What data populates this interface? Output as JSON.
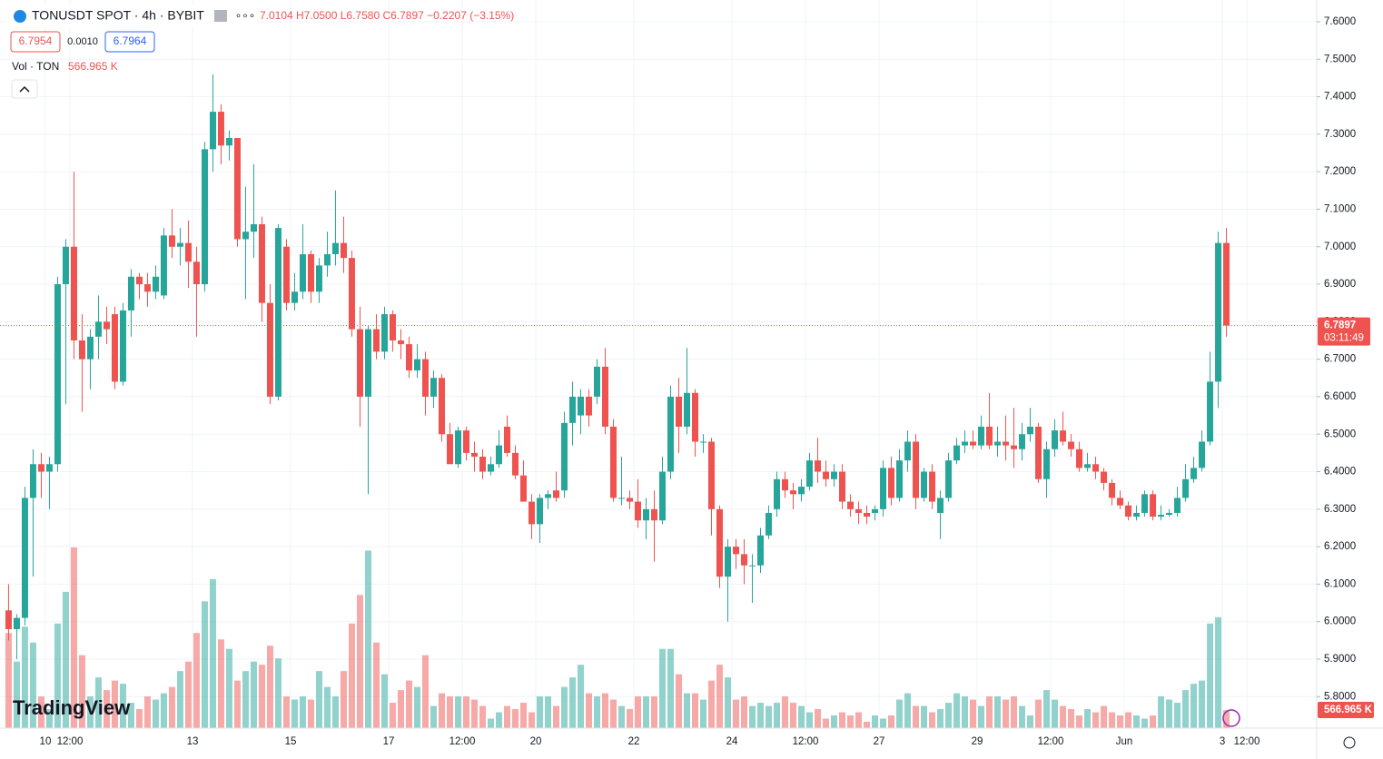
{
  "header": {
    "symbol": "TONUSDT SPOT · 4h · BYBIT",
    "ohlc": "7.0104 H7.0500 L6.7580 C6.7897 −0.2207 (−3.15%)",
    "bid": "6.7954",
    "spread": "0.0010",
    "ask": "6.7964",
    "vol_name": "Vol · TON",
    "vol_value": "566.965 K",
    "countdown": "03:11:49",
    "watermark": "TradingView"
  },
  "chart_data": {
    "type": "candlestick",
    "up_color": "#26a69a",
    "down_color": "#ef5350",
    "grid": true,
    "open": [
      6.03,
      5.98,
      6.01,
      6.33,
      6.42,
      6.4,
      6.42,
      6.9,
      7.0,
      6.75,
      6.7,
      6.76,
      6.8,
      6.82,
      6.64,
      6.83,
      6.92,
      6.9,
      6.88,
      6.87,
      7.03,
      7.0,
      7.01,
      6.96,
      6.9,
      7.26,
      7.36,
      7.27,
      7.29,
      7.02,
      7.04,
      7.06,
      6.85,
      6.6,
      7.0,
      6.85,
      6.88,
      6.98,
      6.88,
      6.95,
      6.98,
      7.01,
      6.97,
      6.78,
      6.6,
      6.78,
      6.72,
      6.82,
      6.75,
      6.74,
      6.67,
      6.7,
      6.6,
      6.65,
      6.5,
      6.42,
      6.51,
      6.45,
      6.44,
      6.4,
      6.42,
      6.52,
      6.45,
      6.39,
      6.32,
      6.26,
      6.33,
      6.35,
      6.35,
      6.53,
      6.55,
      6.6,
      6.6,
      6.68,
      6.52,
      6.33,
      6.33,
      6.32,
      6.27,
      6.3,
      6.27,
      6.4,
      6.6,
      6.52,
      6.61,
      6.48,
      6.48,
      6.3,
      6.12,
      6.2,
      6.18,
      6.15,
      6.15,
      6.23,
      6.3,
      6.38,
      6.35,
      6.34,
      6.36,
      6.43,
      6.4,
      6.38,
      6.4,
      6.32,
      6.3,
      6.29,
      6.29,
      6.3,
      6.41,
      6.33,
      6.43,
      6.48,
      6.33,
      6.4,
      6.29,
      6.33,
      6.43,
      6.47,
      6.48,
      6.47,
      6.52,
      6.47,
      6.48,
      6.47,
      6.46,
      6.5,
      6.52,
      6.38,
      6.46,
      6.51,
      6.48,
      6.46,
      6.41,
      6.42,
      6.4,
      6.37,
      6.33,
      6.31,
      6.28,
      6.29,
      6.34,
      6.28,
      6.285,
      6.29,
      6.33,
      6.38,
      6.41,
      6.48,
      6.64,
      7.01
    ],
    "high": [
      6.1,
      6.02,
      6.36,
      6.46,
      6.45,
      6.44,
      6.92,
      7.02,
      7.2,
      6.82,
      6.78,
      6.87,
      6.84,
      6.84,
      6.85,
      6.94,
      6.93,
      6.93,
      6.95,
      7.05,
      7.1,
      7.05,
      7.07,
      7.0,
      7.28,
      7.46,
      7.38,
      7.31,
      7.29,
      7.16,
      7.22,
      7.08,
      6.9,
      7.06,
      7.02,
      6.93,
      7.06,
      6.99,
      6.97,
      7.04,
      7.15,
      7.08,
      6.99,
      6.84,
      6.79,
      6.82,
      6.84,
      6.83,
      6.78,
      6.76,
      6.74,
      6.72,
      6.67,
      6.66,
      6.53,
      6.52,
      6.52,
      6.48,
      6.46,
      6.44,
      6.51,
      6.55,
      6.47,
      6.43,
      6.34,
      6.34,
      6.35,
      6.4,
      6.56,
      6.64,
      6.62,
      6.62,
      6.7,
      6.73,
      6.54,
      6.44,
      6.35,
      6.38,
      6.33,
      6.35,
      6.44,
      6.63,
      6.65,
      6.73,
      6.62,
      6.5,
      6.49,
      6.31,
      6.22,
      6.22,
      6.22,
      6.18,
      6.25,
      6.31,
      6.4,
      6.4,
      6.37,
      6.38,
      6.45,
      6.49,
      6.43,
      6.42,
      6.42,
      6.34,
      6.32,
      6.31,
      6.31,
      6.43,
      6.44,
      6.46,
      6.51,
      6.5,
      6.41,
      6.42,
      6.35,
      6.45,
      6.49,
      6.51,
      6.51,
      6.55,
      6.61,
      6.52,
      6.55,
      6.57,
      6.53,
      6.57,
      6.53,
      6.48,
      6.54,
      6.56,
      6.5,
      6.48,
      6.45,
      6.44,
      6.41,
      6.38,
      6.35,
      6.32,
      6.31,
      6.35,
      6.35,
      6.31,
      6.3,
      6.36,
      6.42,
      6.44,
      6.51,
      6.72,
      7.04,
      7.05
    ],
    "low": [
      5.95,
      5.9,
      5.99,
      6.12,
      6.33,
      6.3,
      6.4,
      6.58,
      6.7,
      6.56,
      6.62,
      6.7,
      6.74,
      6.62,
      6.63,
      6.76,
      6.86,
      6.84,
      6.86,
      6.86,
      6.97,
      6.95,
      6.89,
      6.76,
      6.88,
      7.2,
      7.22,
      7.23,
      7.0,
      6.86,
      6.97,
      6.8,
      6.58,
      6.59,
      6.83,
      6.83,
      6.86,
      6.85,
      6.85,
      6.92,
      6.95,
      6.93,
      6.76,
      6.52,
      6.34,
      6.7,
      6.7,
      6.72,
      6.7,
      6.65,
      6.65,
      6.55,
      6.57,
      6.48,
      6.42,
      6.41,
      6.43,
      6.4,
      6.38,
      6.39,
      6.41,
      6.44,
      6.38,
      6.32,
      6.22,
      6.21,
      6.3,
      6.32,
      6.33,
      6.47,
      6.5,
      6.52,
      6.58,
      6.5,
      6.32,
      6.31,
      6.3,
      6.25,
      6.22,
      6.16,
      6.26,
      6.38,
      6.45,
      6.5,
      6.44,
      6.45,
      6.23,
      6.09,
      6.0,
      6.14,
      6.1,
      6.05,
      6.13,
      6.22,
      6.28,
      6.33,
      6.3,
      6.32,
      6.35,
      6.37,
      6.36,
      6.36,
      6.3,
      6.28,
      6.26,
      6.26,
      6.27,
      6.28,
      6.31,
      6.32,
      6.4,
      6.3,
      6.32,
      6.3,
      6.22,
      6.32,
      6.42,
      6.45,
      6.46,
      6.46,
      6.46,
      6.44,
      6.43,
      6.41,
      6.43,
      6.48,
      6.37,
      6.33,
      6.44,
      6.47,
      6.44,
      6.4,
      6.4,
      6.38,
      6.35,
      6.31,
      6.3,
      6.27,
      6.27,
      6.28,
      6.27,
      6.27,
      6.28,
      6.28,
      6.32,
      6.37,
      6.4,
      6.47,
      6.57,
      6.76
    ],
    "close": [
      5.98,
      6.01,
      6.33,
      6.42,
      6.4,
      6.42,
      6.9,
      7.0,
      6.75,
      6.7,
      6.76,
      6.8,
      6.78,
      6.64,
      6.83,
      6.92,
      6.9,
      6.88,
      6.92,
      7.03,
      7.0,
      7.01,
      6.96,
      6.9,
      7.26,
      7.36,
      7.27,
      7.29,
      7.02,
      7.04,
      7.06,
      6.85,
      6.6,
      7.05,
      6.85,
      6.88,
      6.98,
      6.88,
      6.95,
      6.98,
      7.01,
      6.97,
      6.78,
      6.6,
      6.78,
      6.72,
      6.82,
      6.75,
      6.74,
      6.67,
      6.7,
      6.6,
      6.65,
      6.5,
      6.42,
      6.51,
      6.45,
      6.44,
      6.4,
      6.42,
      6.47,
      6.45,
      6.39,
      6.32,
      6.26,
      6.33,
      6.34,
      6.33,
      6.53,
      6.6,
      6.6,
      6.55,
      6.68,
      6.52,
      6.33,
      6.33,
      6.32,
      6.27,
      6.3,
      6.27,
      6.4,
      6.6,
      6.52,
      6.61,
      6.48,
      6.48,
      6.3,
      6.12,
      6.2,
      6.18,
      6.15,
      6.15,
      6.23,
      6.29,
      6.38,
      6.35,
      6.34,
      6.36,
      6.43,
      6.4,
      6.38,
      6.4,
      6.32,
      6.3,
      6.29,
      6.28,
      6.3,
      6.41,
      6.33,
      6.43,
      6.48,
      6.33,
      6.4,
      6.32,
      6.33,
      6.43,
      6.47,
      6.48,
      6.47,
      6.52,
      6.47,
      6.48,
      6.47,
      6.46,
      6.5,
      6.52,
      6.38,
      6.46,
      6.51,
      6.48,
      6.46,
      6.41,
      6.42,
      6.4,
      6.37,
      6.33,
      6.31,
      6.28,
      6.29,
      6.34,
      6.28,
      6.285,
      6.29,
      6.33,
      6.38,
      6.41,
      6.48,
      6.64,
      7.01,
      6.7897
    ],
    "volume": [
      3000,
      2100,
      3200,
      2700,
      1000,
      600,
      3300,
      4300,
      5700,
      2300,
      1000,
      1600,
      1200,
      1500,
      1400,
      800,
      600,
      1000,
      900,
      1100,
      1300,
      1800,
      2100,
      3000,
      4000,
      4700,
      2800,
      2500,
      1500,
      1800,
      2100,
      2000,
      2600,
      2200,
      1000,
      900,
      1000,
      900,
      1800,
      1300,
      1000,
      1800,
      3300,
      4200,
      5600,
      2700,
      1700,
      800,
      1200,
      1500,
      1300,
      2300,
      700,
      1100,
      1000,
      1000,
      1000,
      900,
      700,
      300,
      500,
      700,
      600,
      800,
      500,
      1000,
      1000,
      700,
      1300,
      1600,
      2000,
      1100,
      1000,
      1100,
      900,
      700,
      600,
      1000,
      1000,
      1000,
      2500,
      2500,
      1700,
      1100,
      1100,
      900,
      1500,
      2000,
      1600,
      900,
      1000,
      700,
      800,
      700,
      800,
      1000,
      800,
      700,
      500,
      600,
      300,
      400,
      500,
      400,
      500,
      200,
      400,
      300,
      400,
      900,
      1100,
      700,
      700,
      500,
      600,
      800,
      1100,
      1000,
      900,
      700,
      1000,
      1000,
      900,
      1000,
      700,
      400,
      900,
      1200,
      900,
      700,
      600,
      400,
      600,
      500,
      700,
      500,
      400,
      500,
      400,
      300,
      400,
      1000,
      900,
      800,
      1200,
      1400,
      1500,
      3300,
      3500,
      566.965
    ],
    "ylim": [
      5.716,
      7.658
    ],
    "vlim": [
      0,
      5900
    ],
    "xlim": [
      -1.05,
      160.05
    ],
    "yticks": [
      {
        "value": 7.6,
        "label": "7.6000"
      },
      {
        "value": 7.5,
        "label": "7.5000"
      },
      {
        "value": 7.4,
        "label": "7.4000"
      },
      {
        "value": 7.3,
        "label": "7.3000"
      },
      {
        "value": 7.2,
        "label": "7.2000"
      },
      {
        "value": 7.1,
        "label": "7.1000"
      },
      {
        "value": 7.0,
        "label": "7.0000"
      },
      {
        "value": 6.9,
        "label": "6.9000"
      },
      {
        "value": 6.8,
        "label": "6.8000"
      },
      {
        "value": 6.7,
        "label": "6.7000"
      },
      {
        "value": 6.6,
        "label": "6.6000"
      },
      {
        "value": 6.5,
        "label": "6.5000"
      },
      {
        "value": 6.4,
        "label": "6.4000"
      },
      {
        "value": 6.3,
        "label": "6.3000"
      },
      {
        "value": 6.2,
        "label": "6.2000"
      },
      {
        "value": 6.1,
        "label": "6.1000"
      },
      {
        "value": 6.0,
        "label": "6.0000"
      },
      {
        "value": 5.9,
        "label": "5.9000"
      },
      {
        "value": 5.8,
        "label": "5.8000"
      }
    ],
    "xticks": [
      {
        "value": 4.5,
        "label": "10"
      },
      {
        "value": 7.5,
        "label": "12:00"
      },
      {
        "value": 22.5,
        "label": "13"
      },
      {
        "value": 34.5,
        "label": "15"
      },
      {
        "value": 46.5,
        "label": "17"
      },
      {
        "value": 55.5,
        "label": "12:00"
      },
      {
        "value": 64.5,
        "label": "20"
      },
      {
        "value": 76.5,
        "label": "22"
      },
      {
        "value": 88.5,
        "label": "24"
      },
      {
        "value": 97.5,
        "label": "12:00"
      },
      {
        "value": 106.5,
        "label": "27"
      },
      {
        "value": 118.5,
        "label": "29"
      },
      {
        "value": 127.5,
        "label": "12:00"
      },
      {
        "value": 136.5,
        "label": "Jun"
      },
      {
        "value": 148.5,
        "label": "3"
      },
      {
        "value": 151.5,
        "label": "12:00"
      }
    ]
  }
}
